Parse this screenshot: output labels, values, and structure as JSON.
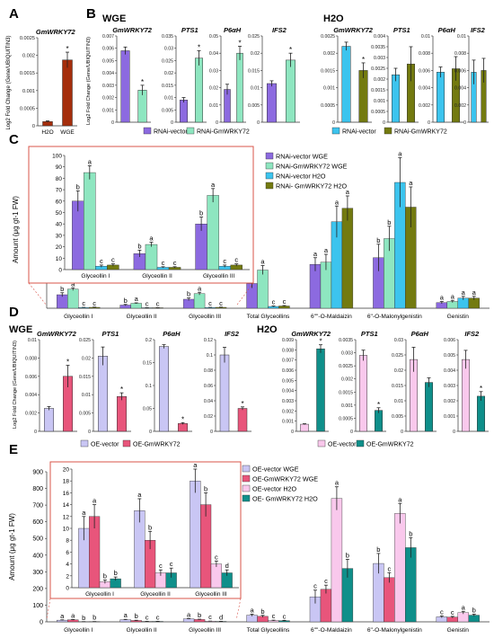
{
  "colors": {
    "purple": "#8c6ae0",
    "mint": "#8ee6c0",
    "cyan": "#3cc4ee",
    "olive": "#737a10",
    "brown": "#a52e0c",
    "lavender": "#c9c6f4",
    "pink": "#e8557b",
    "lightpink": "#f9c8ec",
    "teal": "#0f8f8a",
    "inset_border": "#d9544a"
  },
  "panels": {
    "A": {
      "letter": "A"
    },
    "B": {
      "letter": "B",
      "group1": "WGE",
      "group2": "H2O"
    },
    "C": {
      "letter": "C"
    },
    "D": {
      "letter": "D",
      "group1": "WGE",
      "group2": "H2O"
    },
    "E": {
      "letter": "E"
    }
  },
  "legends": {
    "B": [
      "RNAi-vector",
      "RNAi-GmWRKY72",
      "RNAi-vector",
      "RNAi-GmWRKY72"
    ],
    "C": [
      "RNAi-vector WGE",
      "RNAi-GmWRKY72 WGE",
      "RNAi-vector H2O",
      "RNAi- GmWRKY72 H2O"
    ],
    "D": [
      "OE-vector",
      "OE-GmWRKY72",
      "OE-vector",
      "OE-GmWRKY72"
    ],
    "E": [
      "OE-vector WGE",
      "OE-GmWRKY72 WGE",
      "OE-vector H2O",
      "OE- GmWRKY72 H2O"
    ]
  },
  "chart_data": [
    {
      "panel": "A",
      "type": "bar",
      "title": "GmWRKY72",
      "ylabel": "Log2 Fold Change (Gene/UBIQUITIN3)",
      "categories": [
        "H2O",
        "WGE"
      ],
      "values": [
        0.00012,
        0.00187
      ],
      "errors": [
        2e-05,
        0.00022
      ],
      "ylim": [
        0,
        0.0025
      ],
      "ticks": [
        "0",
        "0.0005",
        "0.001",
        "0.0015",
        "0.002",
        "0.0025"
      ],
      "annotations": [
        "",
        "*"
      ]
    },
    {
      "panel": "B",
      "type": "bar",
      "ylabel": "Log2 Fold Change (Gene/UBIQUITIN3)",
      "subplots": [
        {
          "group": "WGE",
          "title": "GmWRKY72",
          "ylim": [
            0,
            0.007
          ],
          "ticks": [
            "0",
            "0.001",
            "0.002",
            "0.003",
            "0.004",
            "0.005",
            "0.006",
            "0.007"
          ],
          "values": [
            0.0058,
            0.0026
          ],
          "errors": [
            0.0003,
            0.0004
          ],
          "annotations": [
            "",
            "*"
          ]
        },
        {
          "group": "WGE",
          "title": "PTS1",
          "ylim": [
            0,
            0.035
          ],
          "ticks": [
            "0",
            "0.005",
            "0.01",
            "0.015",
            "0.02",
            "0.025",
            "0.03",
            "0.035"
          ],
          "values": [
            0.009,
            0.026
          ],
          "errors": [
            0.001,
            0.003
          ],
          "annotations": [
            "",
            "*"
          ]
        },
        {
          "group": "WGE",
          "title": "P6αH",
          "ylim": [
            0,
            0.05
          ],
          "ticks": [
            "0",
            "0.01",
            "0.02",
            "0.03",
            "0.04",
            "0.05"
          ],
          "values": [
            0.019,
            0.04
          ],
          "errors": [
            0.003,
            0.004
          ],
          "annotations": [
            "",
            "*"
          ]
        },
        {
          "group": "WGE",
          "title": "IFS2",
          "ylim": [
            0,
            0.025
          ],
          "ticks": [
            "0",
            "0.005",
            "0.01",
            "0.015",
            "0.02",
            "0.025"
          ],
          "values": [
            0.0112,
            0.018
          ],
          "errors": [
            0.0008,
            0.002
          ],
          "annotations": [
            "",
            "*"
          ]
        },
        {
          "group": "H2O",
          "title": "GmWRKY72",
          "ylim": [
            0,
            0.0025
          ],
          "ticks": [
            "0",
            "0.0005",
            "0.001",
            "0.0015",
            "0.002",
            "0.0025"
          ],
          "values": [
            0.0022,
            0.0015
          ],
          "errors": [
            0.00012,
            0.00022
          ],
          "annotations": [
            "",
            "*"
          ]
        },
        {
          "group": "H2O",
          "title": "PTS1",
          "ylim": [
            0,
            0.004
          ],
          "ticks": [
            "0",
            "0.0005",
            "0.001",
            "0.0015",
            "0.002",
            "0.0025",
            "0.003",
            "0.0035",
            "0.004"
          ],
          "values": [
            0.0022,
            0.0027
          ],
          "errors": [
            0.0003,
            0.0008
          ],
          "annotations": [
            "",
            ""
          ]
        },
        {
          "group": "H2O",
          "title": "P6αH",
          "ylim": [
            0,
            0.01
          ],
          "ticks": [
            "0",
            "0.002",
            "0.004",
            "0.006",
            "0.008",
            "0.01"
          ],
          "values": [
            0.0058,
            0.0062
          ],
          "errors": [
            0.0006,
            0.0014
          ],
          "annotations": [
            "",
            ""
          ]
        },
        {
          "group": "H2O",
          "title": "IFS2",
          "ylim": [
            0,
            0.01
          ],
          "ticks": [
            "0",
            "0.002",
            "0.004",
            "0.006",
            "0.008",
            "0.01"
          ],
          "values": [
            0.0058,
            0.006
          ],
          "errors": [
            0.0014,
            0.0014
          ],
          "annotations": [
            "",
            ""
          ]
        }
      ]
    },
    {
      "panel": "C",
      "type": "bar",
      "ylabel": "Amount (μg gt-1 FW)",
      "categories": [
        "Glyceollin I",
        "Glyceollin II",
        "Glyceollin III",
        "Total Glyceollins",
        "6\"\"-O-Maldaizin",
        "6\"-O-Malonylgenistin",
        "Genistin"
      ],
      "series": [
        {
          "name": "RNAi-vector WGE",
          "values": [
            60,
            14,
            40,
            110,
            195,
            225,
            25
          ]
        },
        {
          "name": "RNAi-GmWRKY72 WGE",
          "values": [
            85,
            22,
            65,
            170,
            205,
            310,
            30
          ]
        },
        {
          "name": "RNAi-vector H2O",
          "values": [
            3,
            2,
            3,
            8,
            385,
            560,
            45
          ]
        },
        {
          "name": "RNAi- GmWRKY72 H2O",
          "values": [
            4,
            2,
            4,
            10,
            445,
            450,
            45
          ]
        }
      ],
      "errors": [
        [
          9,
          3,
          6,
          20,
          30,
          60,
          5
        ],
        [
          6,
          2,
          6,
          20,
          35,
          55,
          5
        ],
        [
          1,
          0.5,
          1,
          2,
          70,
          110,
          8
        ],
        [
          1,
          0.5,
          1,
          2,
          55,
          90,
          8
        ]
      ],
      "letters": [
        [
          "b",
          "b",
          "b",
          "b",
          "a",
          "b",
          "a"
        ],
        [
          "a",
          "a",
          "a",
          "a",
          "a",
          "b",
          "a"
        ],
        [
          "c",
          "c",
          "c",
          "c",
          "a",
          "a",
          "a"
        ],
        [
          "c",
          "c",
          "c",
          "c",
          "a",
          "a",
          "a"
        ]
      ],
      "inset": {
        "categories": [
          "Glyceollin I",
          "Glyceollin II",
          "Glyceollin III"
        ],
        "ylim": [
          0,
          100
        ],
        "ticks": [
          "0",
          "10",
          "20",
          "30",
          "40",
          "50",
          "60",
          "70",
          "80",
          "90",
          "100"
        ]
      }
    },
    {
      "panel": "D",
      "type": "bar",
      "ylabel": "Log2 Fold Change (Gene/UBIQUITIN3)",
      "subplots": [
        {
          "group": "WGE",
          "title": "GmWRKY72",
          "ylim": [
            0,
            0.01
          ],
          "ticks": [
            "0",
            "0.002",
            "0.004",
            "0.006",
            "0.008",
            "0.01"
          ],
          "values": [
            0.0025,
            0.006
          ],
          "errors": [
            0.0002,
            0.0012
          ],
          "annotations": [
            "",
            "*"
          ]
        },
        {
          "group": "WGE",
          "title": "PTS1",
          "ylim": [
            0,
            0.025
          ],
          "ticks": [
            "0",
            "0.005",
            "0.01",
            "0.015",
            "0.02",
            "0.025"
          ],
          "values": [
            0.0205,
            0.0095
          ],
          "errors": [
            0.0025,
            0.001
          ],
          "annotations": [
            "",
            "*"
          ]
        },
        {
          "group": "WGE",
          "title": "P6αH",
          "ylim": [
            0,
            0.2
          ],
          "ticks": [
            "0",
            "0.05",
            "0.1",
            "0.15",
            "0.2"
          ],
          "values": [
            0.185,
            0.017
          ],
          "errors": [
            0.004,
            0.002
          ],
          "annotations": [
            "",
            "*"
          ]
        },
        {
          "group": "WGE",
          "title": "IFS2",
          "ylim": [
            0,
            0.12
          ],
          "ticks": [
            "0",
            "0.02",
            "0.04",
            "0.06",
            "0.08",
            "0.1",
            "0.12"
          ],
          "values": [
            0.1,
            0.03
          ],
          "errors": [
            0.01,
            0.002
          ],
          "annotations": [
            "",
            "*"
          ]
        },
        {
          "group": "H2O",
          "title": "GmWRKY72",
          "ylim": [
            0,
            0.009
          ],
          "ticks": [
            "0",
            "0.001",
            "0.002",
            "0.003",
            "0.004",
            "0.005",
            "0.006",
            "0.007",
            "0.008",
            "0.009"
          ],
          "values": [
            0.0007,
            0.0081
          ],
          "errors": [
            5e-05,
            0.0004
          ],
          "annotations": [
            "",
            "*"
          ]
        },
        {
          "group": "H2O",
          "title": "PTS1",
          "ylim": [
            0,
            0.0035
          ],
          "ticks": [
            "0",
            "0.0005",
            "0.001",
            "0.0015",
            "0.002",
            "0.0025",
            "0.003",
            "0.0035"
          ],
          "values": [
            0.0029,
            0.0008
          ],
          "errors": [
            0.0002,
            0.0001
          ],
          "annotations": [
            "",
            "*"
          ]
        },
        {
          "group": "H2O",
          "title": "P6αH",
          "ylim": [
            0,
            0.03
          ],
          "ticks": [
            "0",
            "0.005",
            "0.01",
            "0.015",
            "0.02",
            "0.025",
            "0.03"
          ],
          "values": [
            0.0235,
            0.016
          ],
          "errors": [
            0.004,
            0.0015
          ],
          "annotations": [
            "",
            ""
          ]
        },
        {
          "group": "H2O",
          "title": "IFS2",
          "ylim": [
            0,
            0.006
          ],
          "ticks": [
            "0",
            "0.001",
            "0.002",
            "0.003",
            "0.004",
            "0.005",
            "0.006"
          ],
          "values": [
            0.0047,
            0.0023
          ],
          "errors": [
            0.0006,
            0.0003
          ],
          "annotations": [
            "",
            "*"
          ]
        }
      ]
    },
    {
      "panel": "E",
      "type": "bar",
      "ylabel": "Amount (μg gt-1 FW)",
      "ylim": [
        0,
        900
      ],
      "ticks": [
        "0",
        "100",
        "200",
        "300",
        "400",
        "500",
        "600",
        "700",
        "800",
        "900"
      ],
      "categories": [
        "Glyceollin I",
        "Glyceollin II",
        "Glyceollin III",
        "Total Glyceollins",
        "6\"\"-O-Maldaizin",
        "6\"-O-Malonylgenistin",
        "Genistin"
      ],
      "series": [
        {
          "name": "OE-vector WGE",
          "values": [
            10,
            13,
            18,
            40,
            150,
            350,
            30
          ]
        },
        {
          "name": "OE-GmWRKY72 WGE",
          "values": [
            12,
            8,
            14,
            33,
            195,
            265,
            28
          ]
        },
        {
          "name": "OE-vector H2O",
          "values": [
            1,
            2.5,
            4,
            8,
            740,
            650,
            55
          ]
        },
        {
          "name": "OE- GmWRKY72 H2O",
          "values": [
            1.5,
            2.5,
            2.5,
            7,
            320,
            445,
            40
          ]
        }
      ],
      "errors": [
        [
          2,
          2,
          2,
          6,
          40,
          60,
          6
        ],
        [
          2,
          1.5,
          2,
          6,
          25,
          30,
          5
        ],
        [
          0.3,
          0.5,
          0.5,
          2,
          70,
          60,
          8
        ],
        [
          0.3,
          0.8,
          0.5,
          2,
          55,
          60,
          6
        ]
      ],
      "letters": [
        [
          "a",
          "a",
          "a",
          "a",
          "c",
          "b",
          "c"
        ],
        [
          "a",
          "b",
          "b",
          "b",
          "c",
          "c",
          "c"
        ],
        [
          "b",
          "c",
          "c",
          "c",
          "a",
          "a",
          "a"
        ],
        [
          "b",
          "c",
          "d",
          "c",
          "b",
          "b",
          "b"
        ]
      ],
      "inset": {
        "categories": [
          "Glyceollin I",
          "Glyceollin II",
          "Glyceollin III"
        ],
        "ylim": [
          0,
          20
        ],
        "ticks": [
          "0",
          "2",
          "4",
          "6",
          "8",
          "10",
          "12",
          "14",
          "16",
          "18",
          "20"
        ]
      }
    }
  ]
}
